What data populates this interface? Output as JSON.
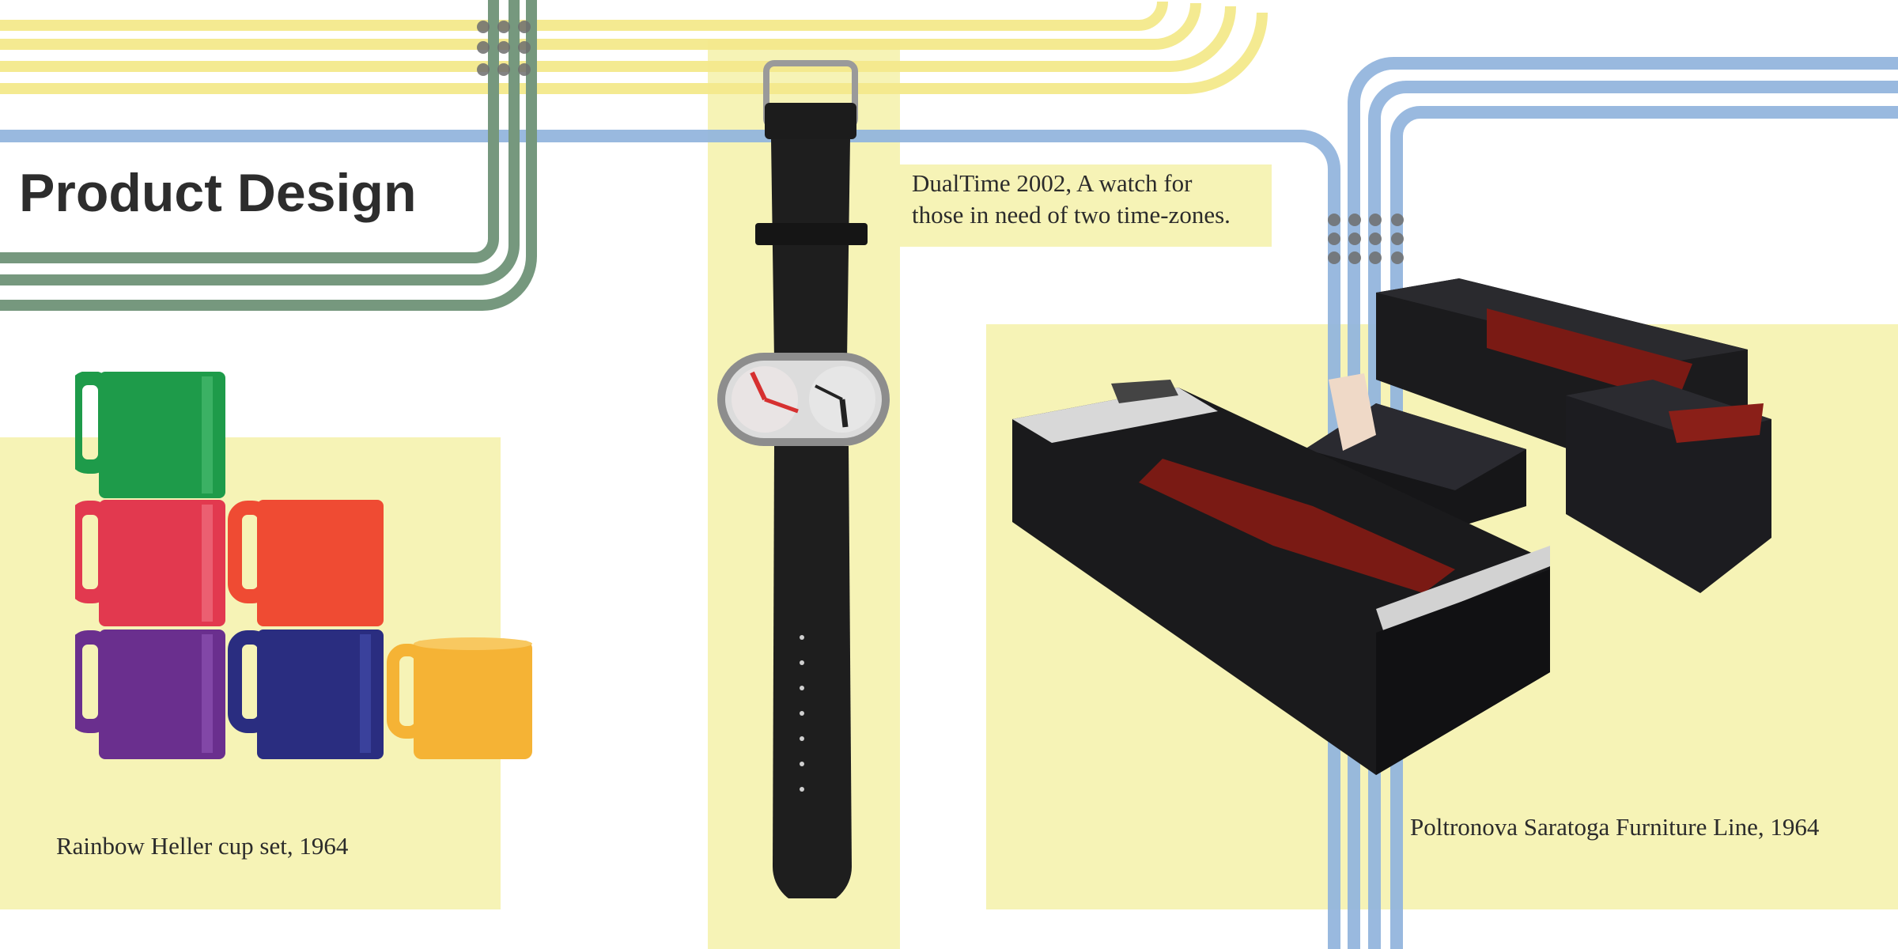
{
  "page": {
    "title": "Product Design"
  },
  "captions": {
    "cups": "Rainbow Heller cup set, 1964",
    "watch_line1": "DualTime 2002, A watch for",
    "watch_line2": "those in need of two time-zones.",
    "furniture": "Poltronova Saratoga Furniture Line, 1964"
  },
  "colors": {
    "background": "#ffffff",
    "panel_yellow": "#f6f3b6",
    "stripe_yellow": "#f4e98c",
    "stripe_blue": "#94b6de",
    "stripe_green": "#6f9378",
    "dot_gray": "#6e6e6e",
    "cup_green": "#1e9b4a",
    "cup_red": "#e2394f",
    "cup_orange": "#ef4b33",
    "cup_purple": "#6a2f8e",
    "cup_navy": "#2a2d80",
    "cup_yellow": "#f5b335",
    "upholstery": "#7a1a14"
  },
  "illustrations": [
    "heller-cup-stack",
    "dualtime-watch",
    "saratoga-sofa-set"
  ]
}
